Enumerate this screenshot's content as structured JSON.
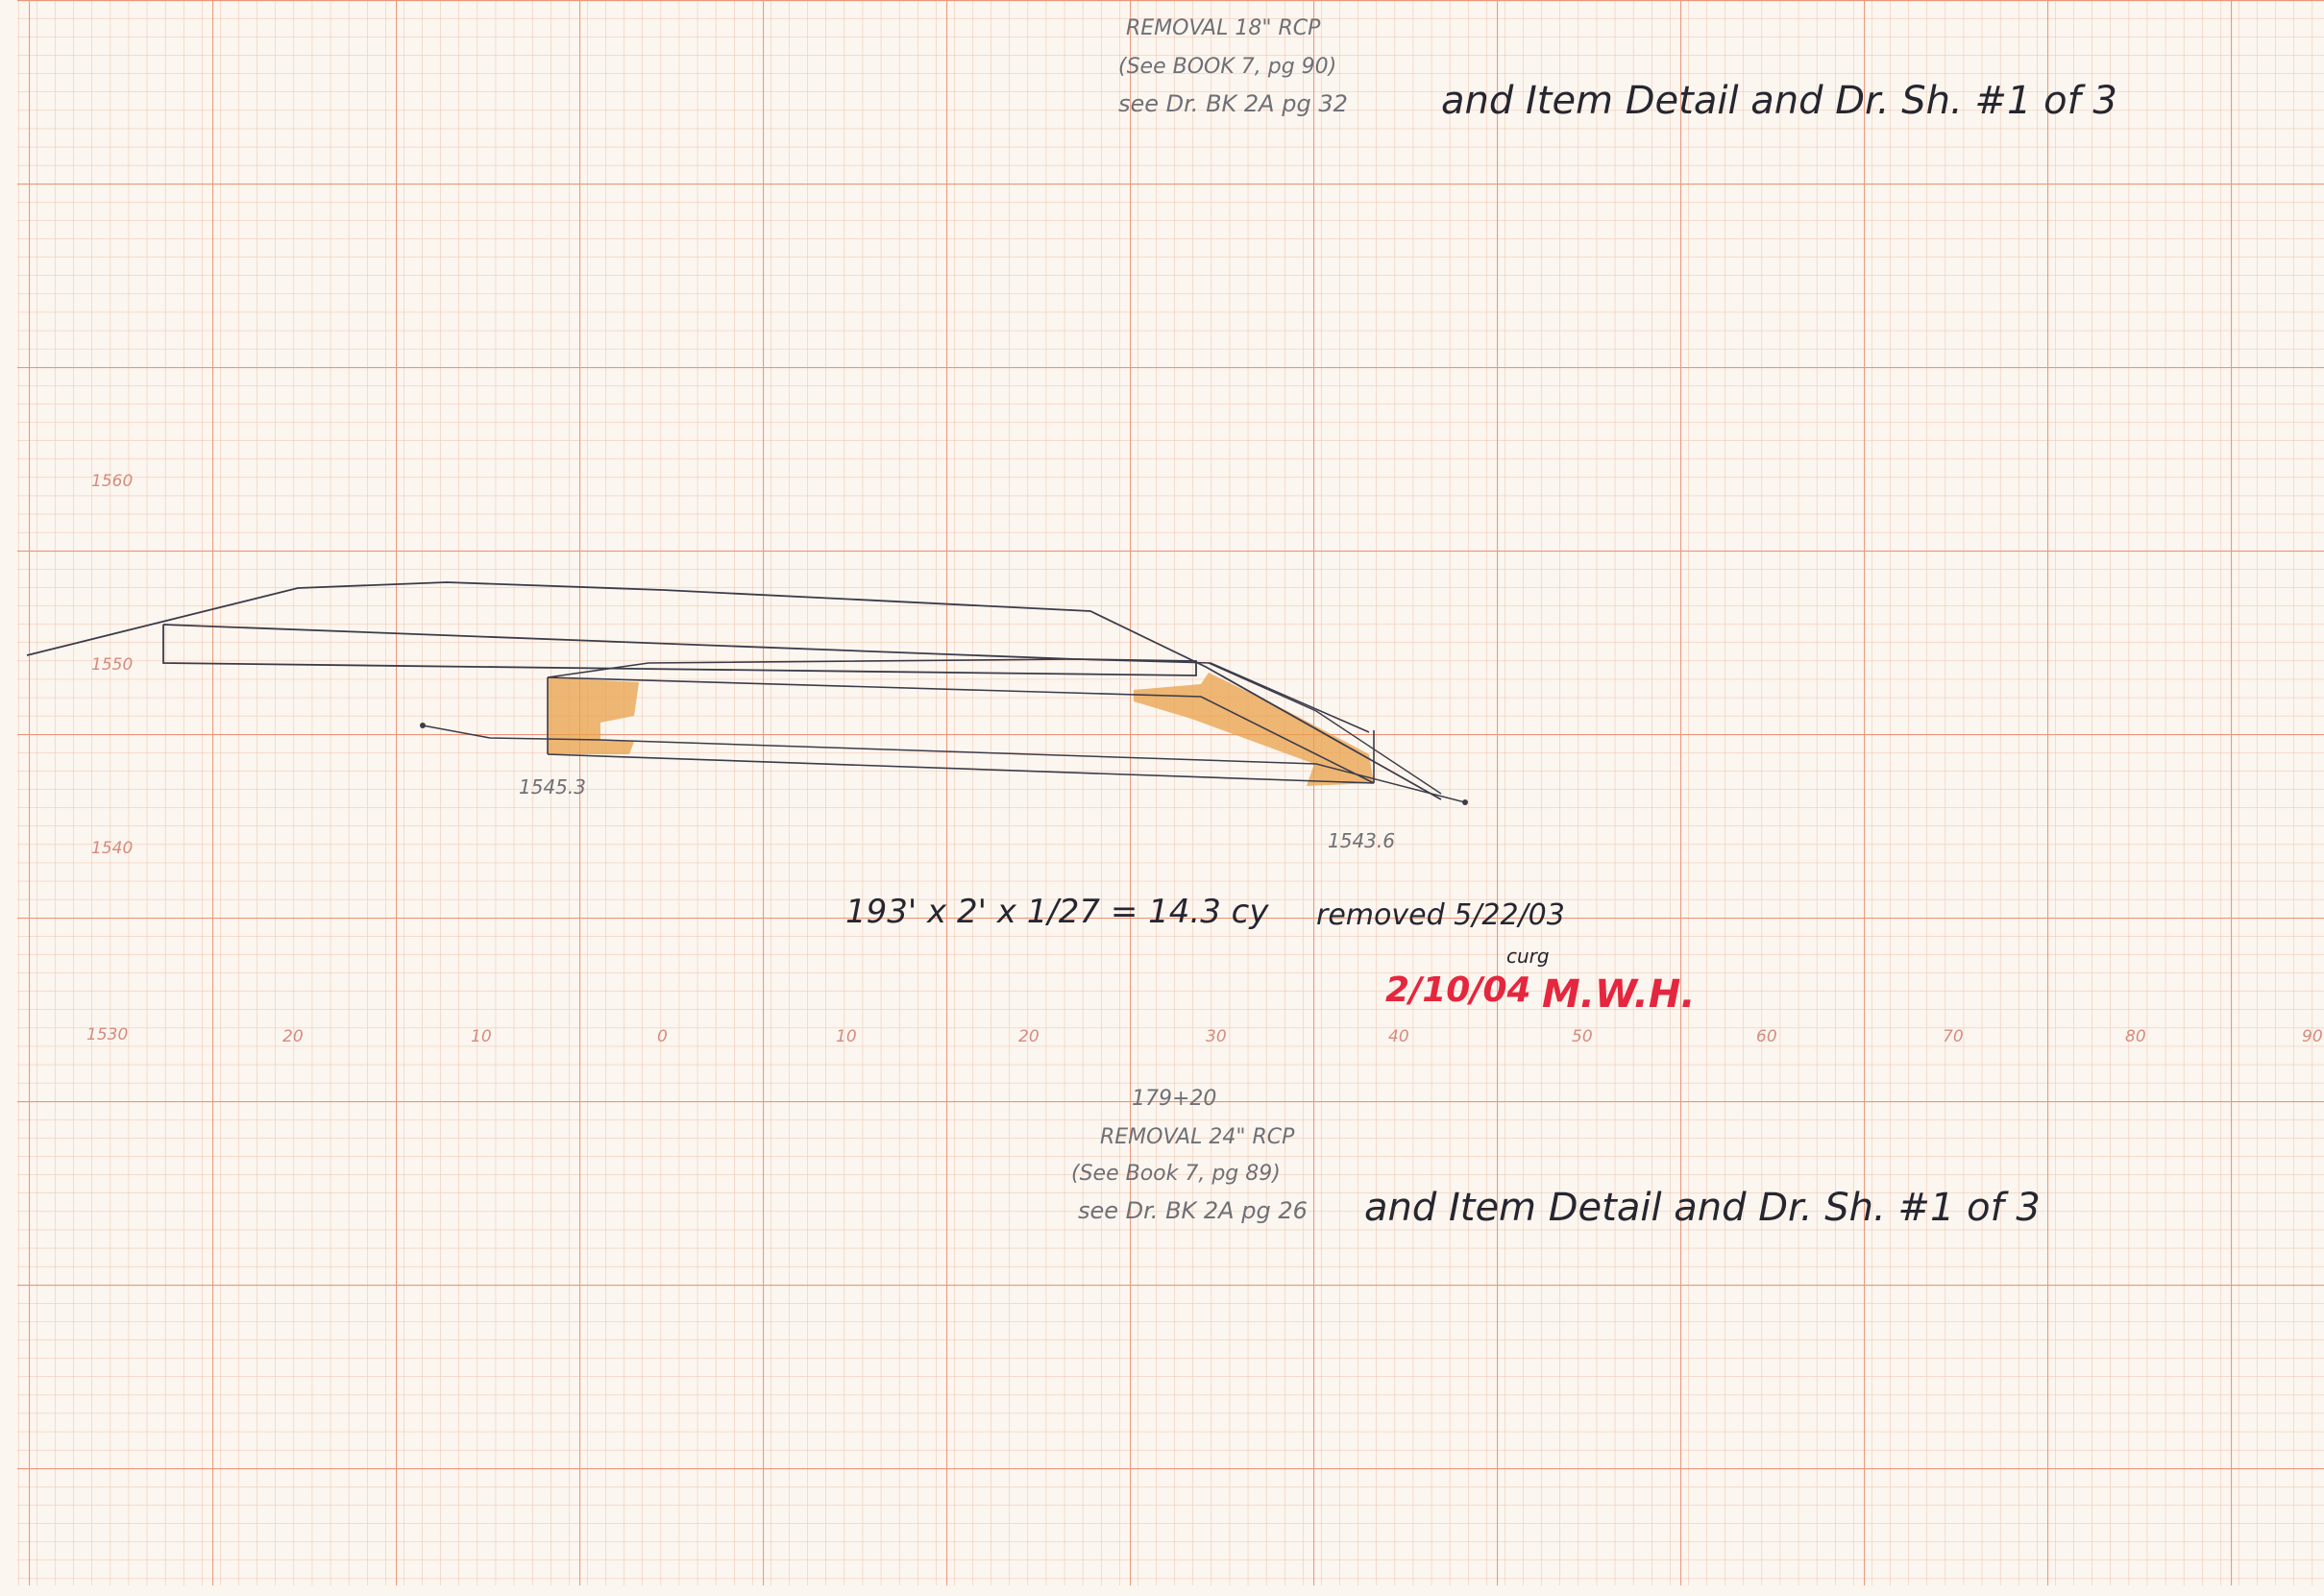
{
  "notes": {
    "top": {
      "line1": "REMOVAL 18\" RCP",
      "line2": "(See BOOK 7, pg 90)",
      "line3": "see Dr. BK 2A pg 32",
      "line3_big": "and Item Detail and Dr. Sh. #1 of 3"
    },
    "bottom": {
      "station": "179+20",
      "line1": "REMOVAL 24\" RCP",
      "line2": "(See Book 7, pg 89)",
      "line3": "see Dr. BK 2A pg 26",
      "line3_big": "and Item Detail and Dr. Sh. #1 of 3"
    },
    "calc": "193' x 2' x 1/27 = 14.3 cy",
    "removed": "removed 5/22/03",
    "curg": "curg",
    "red_date": "2/10/04",
    "red_initials": "M.W.H."
  },
  "elevations": {
    "left_invert": "1545.3",
    "right_invert": "1543.6"
  },
  "axes": {
    "y_labels": [
      "1560",
      "1550",
      "1540",
      "1530"
    ],
    "x_labels": [
      "20",
      "10",
      "0",
      "10",
      "20",
      "30",
      "40",
      "50",
      "60",
      "70",
      "80",
      "90"
    ]
  },
  "colors": {
    "grid_minor": "#f0bfa9",
    "grid_major": "#e88a6c",
    "paper": "#fbf6ef",
    "pencil": "#6f6f76",
    "ink": "#262630",
    "red_ink": "#e5263f",
    "shading": "#e9a04a"
  }
}
